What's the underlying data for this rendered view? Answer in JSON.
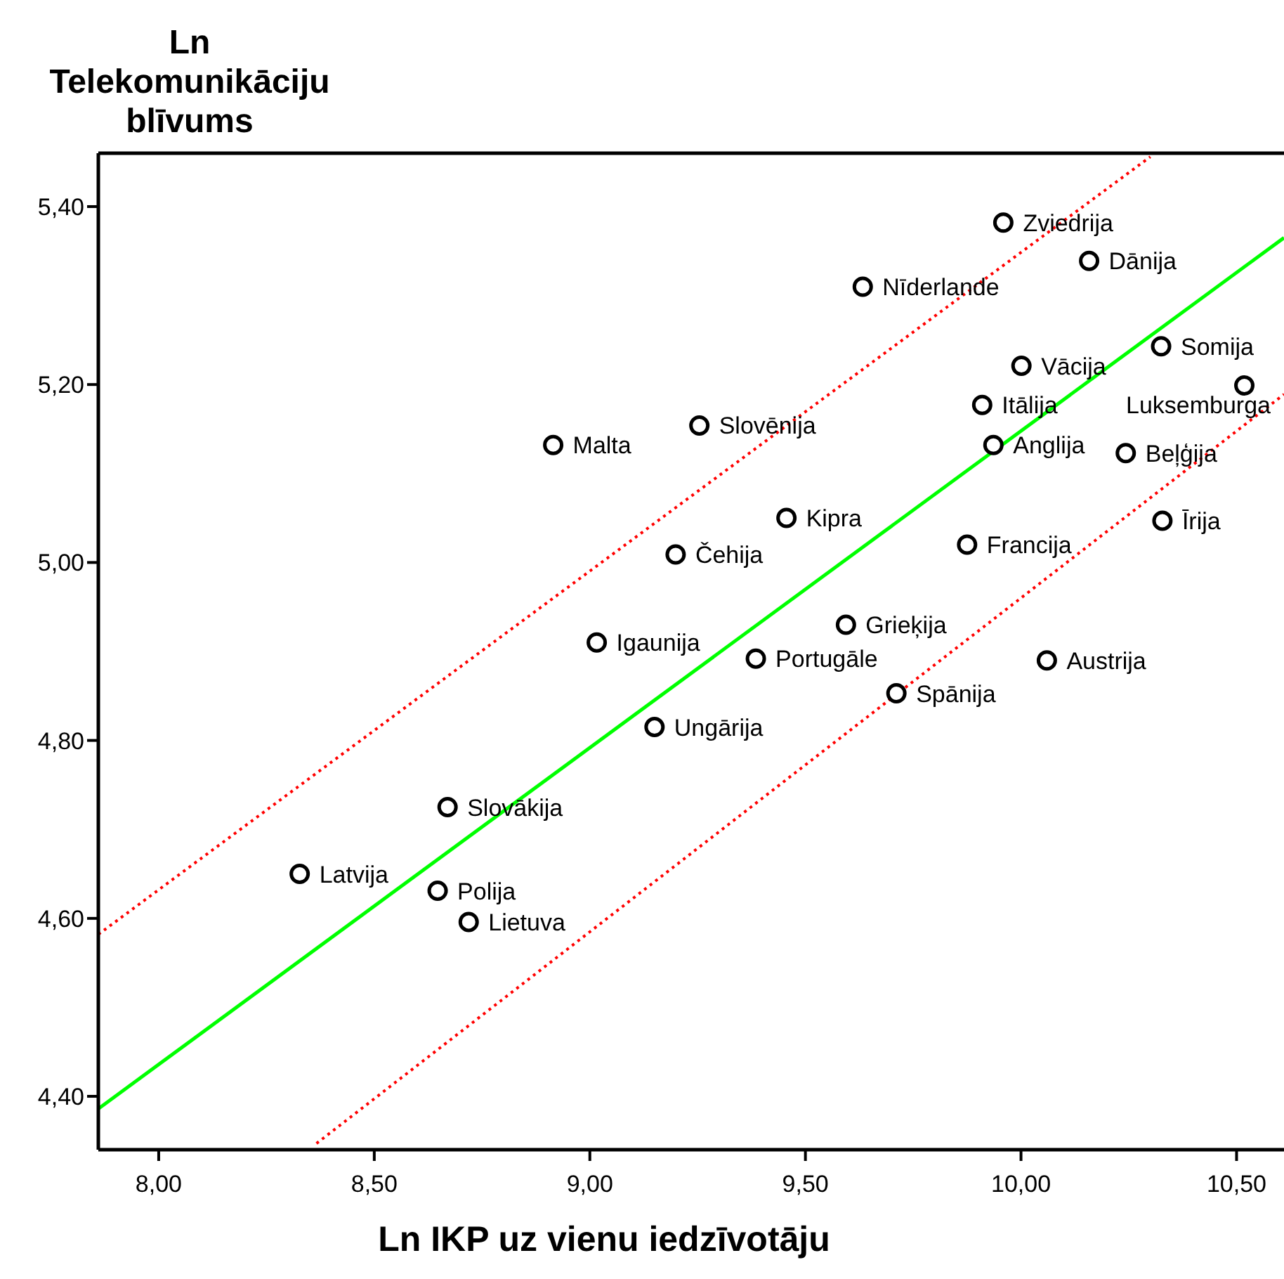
{
  "chart_data": {
    "type": "scatter",
    "xlabel": "Ln IKP uz vienu iedzīvotāju",
    "ylabel": "Ln Telekomunikāciju blīvums",
    "xlim": [
      7.86,
      10.61
    ],
    "ylim": [
      4.34,
      5.46
    ],
    "xticks": [
      {
        "value": 8,
        "label": "8,00"
      },
      {
        "value": 8.5,
        "label": "8,50"
      },
      {
        "value": 9,
        "label": "9,00"
      },
      {
        "value": 9.5,
        "label": "9,50"
      },
      {
        "value": 10,
        "label": "10,00"
      },
      {
        "value": 10.5,
        "label": "10,50"
      }
    ],
    "yticks": [
      {
        "value": 4.4,
        "label": "4,40"
      },
      {
        "value": 4.6,
        "label": "4,60"
      },
      {
        "value": 4.8,
        "label": "4,80"
      },
      {
        "value": 5.0,
        "label": "5,00"
      },
      {
        "value": 5.2,
        "label": "5,20"
      },
      {
        "value": 5.4,
        "label": "5,40"
      }
    ],
    "series": [
      {
        "marker": "circle",
        "color": "#000000",
        "x": [
          9.959,
          10.158,
          9.633,
          10.325,
          10.001,
          10.518,
          9.91,
          9.254,
          8.915,
          9.936,
          10.243,
          9.456,
          10.328,
          9.875,
          9.199,
          9.594,
          9.016,
          9.385,
          10.06,
          9.711,
          9.15,
          8.67,
          8.327,
          8.647,
          8.719
        ],
        "values": [
          5.382,
          5.339,
          5.31,
          5.243,
          5.221,
          5.199,
          5.177,
          5.154,
          5.132,
          5.132,
          5.123,
          5.05,
          5.047,
          5.02,
          5.009,
          4.93,
          4.91,
          4.892,
          4.89,
          4.853,
          4.815,
          4.725,
          4.65,
          4.631,
          4.596
        ]
      },
      {
        "type": "line",
        "marker": "none",
        "color": "#00ff00",
        "line_style": "solid",
        "x": [
          7.86,
          10.61
        ],
        "values": [
          4.386,
          5.365
        ]
      },
      {
        "type": "line",
        "marker": "none",
        "color": "#ff0000",
        "line_style": "dotted",
        "x": [
          7.86,
          10.3
        ],
        "values": [
          4.582,
          5.456
        ]
      },
      {
        "type": "line",
        "marker": "none",
        "color": "#ff0000",
        "line_style": "dotted",
        "x": [
          8.366,
          10.61
        ],
        "values": [
          4.347,
          5.189
        ]
      }
    ],
    "annotations": [
      {
        "text": "Zviedrija",
        "x": 9.959,
        "y": 5.382
      },
      {
        "text": "Dānija",
        "x": 10.158,
        "y": 5.339
      },
      {
        "text": "Nīderlande",
        "x": 9.633,
        "y": 5.31
      },
      {
        "text": "Somija",
        "x": 10.325,
        "y": 5.243
      },
      {
        "text": "Vācija",
        "x": 10.001,
        "y": 5.221
      },
      {
        "text": "Luksemburga",
        "x": 10.518,
        "y": 5.199
      },
      {
        "text": "Itālija",
        "x": 9.91,
        "y": 5.177
      },
      {
        "text": "Slovēnija",
        "x": 9.254,
        "y": 5.154
      },
      {
        "text": "Malta",
        "x": 8.915,
        "y": 5.132
      },
      {
        "text": "Anglija",
        "x": 9.936,
        "y": 5.132
      },
      {
        "text": "Beļģija",
        "x": 10.243,
        "y": 5.123
      },
      {
        "text": "Kipra",
        "x": 9.456,
        "y": 5.05
      },
      {
        "text": "Īrija",
        "x": 10.328,
        "y": 5.047
      },
      {
        "text": "Francija",
        "x": 9.875,
        "y": 5.02
      },
      {
        "text": "Čehija",
        "x": 9.199,
        "y": 5.009
      },
      {
        "text": "Grieķija",
        "x": 9.594,
        "y": 4.93
      },
      {
        "text": "Igaunija",
        "x": 9.016,
        "y": 4.91
      },
      {
        "text": "Portugāle",
        "x": 9.385,
        "y": 4.892
      },
      {
        "text": "Austrija",
        "x": 10.06,
        "y": 4.89
      },
      {
        "text": "Spānija",
        "x": 9.711,
        "y": 4.853
      },
      {
        "text": "Ungārija",
        "x": 9.15,
        "y": 4.815
      },
      {
        "text": "Slovākija",
        "x": 8.67,
        "y": 4.725
      },
      {
        "text": "Latvija",
        "x": 8.327,
        "y": 4.65
      },
      {
        "text": "Polija",
        "x": 8.647,
        "y": 4.631
      },
      {
        "text": "Lietuva",
        "x": 8.719,
        "y": 4.596
      }
    ]
  }
}
